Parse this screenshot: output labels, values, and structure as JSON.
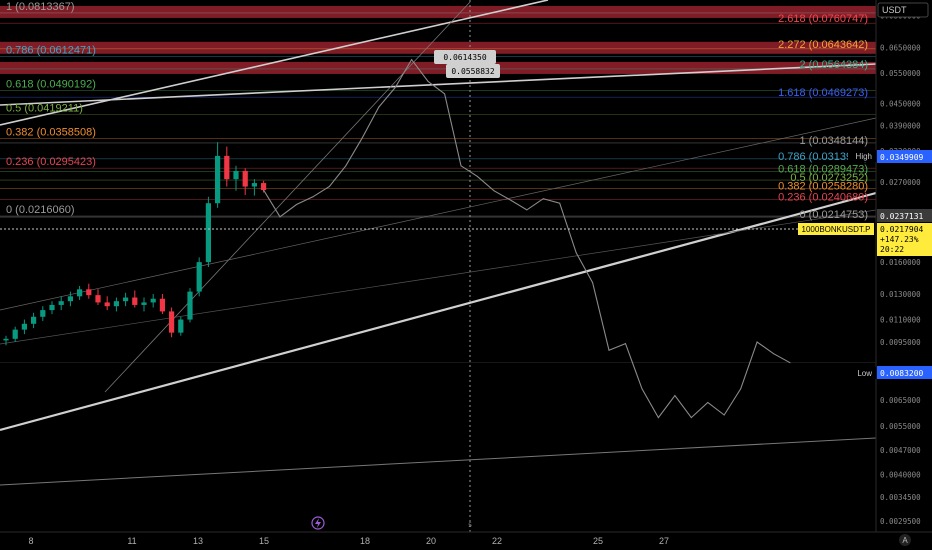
{
  "symbol_tag": "1000BONKUSDT.P",
  "currency_label": "USDT",
  "colors": {
    "bg": "#000000",
    "candle_up": "#089981",
    "candle_down": "#f23645",
    "line": "#8a8a8a",
    "white_line": "#d8d8d8",
    "fib_zone": "#8e1f2a",
    "crosshair": "#9a9a9a"
  },
  "left_fib": [
    {
      "label": "1 (0.0813367)",
      "color": "#9a9a9a"
    },
    {
      "label": "0.786 (0.0612471)",
      "color": "#41a3c7"
    },
    {
      "label": "0.618 (0.0490192)",
      "color": "#4caf50"
    },
    {
      "label": "0.5 (0.0419211)",
      "color": "#7cb342"
    },
    {
      "label": "0.382 (0.0358508)",
      "color": "#ef8d2f"
    },
    {
      "label": "0.236 (0.0295423)",
      "color": "#e5454f"
    },
    {
      "label": "0 (0.0216060)",
      "color": "#9a9a9a"
    }
  ],
  "right_fib_ext": [
    {
      "label": "2.618 (0.0760747)",
      "color": "#f0484f"
    },
    {
      "label": "2.272 (0.0643642)",
      "color": "#f5a23a"
    },
    {
      "label": "2 (0.0564384)",
      "color": "#37b08f"
    },
    {
      "label": "1.618 (0.0469273)",
      "color": "#3d5ef5"
    }
  ],
  "right_fib": [
    {
      "label": "1 (0.0348144)",
      "color": "#9a9a9a"
    },
    {
      "label": "0.786 (0.0313946)",
      "color": "#41a3c7"
    },
    {
      "label": "0.618 (0.0289473)",
      "color": "#4caf50"
    },
    {
      "label": "0.5 (0.0273252)",
      "color": "#7cb342"
    },
    {
      "label": "0.382 (0.0258280)",
      "color": "#ef8d2f"
    },
    {
      "label": "0.236 (0.0240689)",
      "color": "#e5454f"
    },
    {
      "label": "0 (0.0214753)",
      "color": "#9a9a9a"
    }
  ],
  "price_callouts": [
    "0.0614350",
    "0.0558832"
  ],
  "axis_ticks": [
    "0.0800000",
    "0.0650000",
    "0.0550000",
    "0.0450000",
    "0.0390000",
    "0.0330000",
    "0.0270000",
    "0.0160000",
    "0.0130000",
    "0.0110000",
    "0.0095000",
    "0.0065000",
    "0.0055000",
    "0.0047000",
    "0.0040000",
    "0.0034500",
    "0.0029500"
  ],
  "price_tags": {
    "high_label": "High",
    "high_value": "0.0349909",
    "current_value": "0.0237131",
    "last_value": "0.0217904",
    "last_change": "+147.23%",
    "last_timer": "20:22",
    "low_label": "Low",
    "low_value": "0.0083200"
  },
  "x_ticks": [
    "8",
    "11",
    "13",
    "15",
    "18",
    "20",
    "22",
    "25",
    "27"
  ],
  "crosshair_time_label": "5",
  "auto_button": "A",
  "chart_data": {
    "type": "candlestick+line",
    "symbol": "1000BONKUSDT.P",
    "currency": "USDT",
    "y_scale": "log",
    "ylim": [
      0.00275,
      0.0885
    ],
    "x_ticks": [
      "8",
      "11",
      "13",
      "15",
      "18",
      "20",
      "22",
      "25",
      "27"
    ],
    "candles": [
      [
        "8",
        0.0096,
        0.0099,
        0.0093,
        0.0097
      ],
      [
        "",
        0.0097,
        0.0105,
        0.0095,
        0.0103
      ],
      [
        "",
        0.0103,
        0.011,
        0.01,
        0.0107
      ],
      [
        "",
        0.0107,
        0.0115,
        0.0104,
        0.0112
      ],
      [
        "",
        0.0112,
        0.012,
        0.0109,
        0.0117
      ],
      [
        "",
        0.0117,
        0.0124,
        0.0114,
        0.0121
      ],
      [
        "",
        0.0121,
        0.0128,
        0.0117,
        0.0124
      ],
      [
        "",
        0.0124,
        0.0132,
        0.012,
        0.0128
      ],
      [
        "",
        0.0128,
        0.0137,
        0.0125,
        0.0134
      ],
      [
        "",
        0.0134,
        0.0139,
        0.0126,
        0.0129
      ],
      [
        "",
        0.0129,
        0.0134,
        0.0121,
        0.0123
      ],
      [
        "11",
        0.0123,
        0.0128,
        0.0117,
        0.012
      ],
      [
        "",
        0.012,
        0.0127,
        0.0116,
        0.0124
      ],
      [
        "",
        0.0124,
        0.0131,
        0.012,
        0.0127
      ],
      [
        "",
        0.0127,
        0.0133,
        0.0119,
        0.0121
      ],
      [
        "",
        0.0121,
        0.0127,
        0.0116,
        0.0123
      ],
      [
        "",
        0.0123,
        0.013,
        0.0119,
        0.0126
      ],
      [
        "",
        0.0126,
        0.013,
        0.0114,
        0.0116
      ],
      [
        "13",
        0.0116,
        0.0119,
        0.0098,
        0.0101
      ],
      [
        "",
        0.0101,
        0.0112,
        0.0099,
        0.011
      ],
      [
        "",
        0.011,
        0.0135,
        0.0108,
        0.0132
      ],
      [
        "",
        0.0132,
        0.0165,
        0.0128,
        0.016
      ],
      [
        "",
        0.016,
        0.0245,
        0.0155,
        0.0235
      ],
      [
        "15",
        0.0235,
        0.035,
        0.0228,
        0.032
      ],
      [
        "",
        0.032,
        0.034,
        0.0262,
        0.0275
      ],
      [
        "",
        0.0275,
        0.03,
        0.0255,
        0.029
      ],
      [
        "",
        0.029,
        0.0295,
        0.0248,
        0.0262
      ],
      [
        "",
        0.0262,
        0.0275,
        0.0247,
        0.0268
      ],
      [
        "",
        0.0268,
        0.0272,
        0.0252,
        0.0256
      ]
    ],
    "line_series": [
      [
        "",
        0.0256
      ],
      [
        "",
        0.0215
      ],
      [
        "",
        0.0233
      ],
      [
        "",
        0.0245
      ],
      [
        "18",
        0.0262
      ],
      [
        "",
        0.03
      ],
      [
        "",
        0.036
      ],
      [
        "",
        0.044
      ],
      [
        "",
        0.05
      ],
      [
        "20",
        0.06
      ],
      [
        "",
        0.052
      ],
      [
        "",
        0.048
      ],
      [
        "",
        0.03
      ],
      [
        "",
        0.028
      ],
      [
        "",
        0.0255
      ],
      [
        "22",
        0.024
      ],
      [
        "",
        0.0225
      ],
      [
        "",
        0.0242
      ],
      [
        "",
        0.0235
      ],
      [
        "",
        0.017
      ],
      [
        "",
        0.014
      ],
      [
        "25",
        0.009
      ],
      [
        "",
        0.0094
      ],
      [
        "",
        0.007
      ],
      [
        "27",
        0.0058
      ],
      [
        "",
        0.0067
      ],
      [
        "",
        0.0058
      ],
      [
        "",
        0.0064
      ],
      [
        "",
        0.0059
      ],
      [
        "",
        0.007
      ],
      [
        "",
        0.0095
      ],
      [
        "",
        0.0088
      ],
      [
        "",
        0.0083
      ]
    ]
  }
}
